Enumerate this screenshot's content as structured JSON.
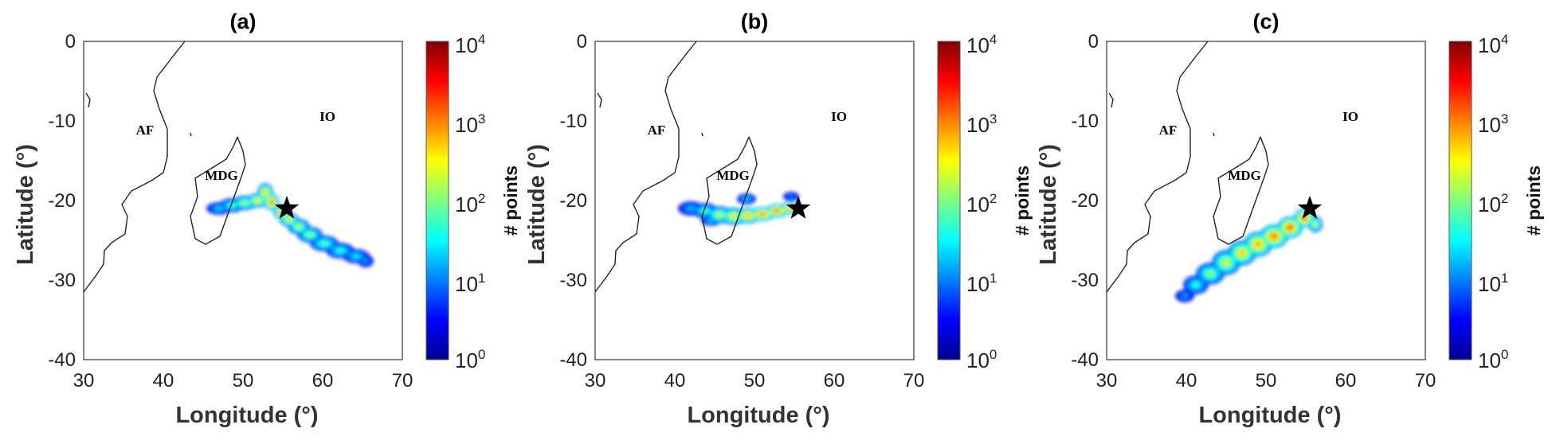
{
  "chart_data": [
    {
      "type": "heatmap",
      "title": "(a)",
      "xlabel": "Longitude (°)",
      "ylabel": "Latitude (°)",
      "xlim": [
        30,
        70
      ],
      "ylim": [
        -40,
        0
      ],
      "xticks": [
        "30",
        "40",
        "50",
        "60",
        "70"
      ],
      "yticks": [
        "0",
        "-10",
        "-20",
        "-30",
        "-40"
      ],
      "colorbar": {
        "label": "# points",
        "scale": "log",
        "range": [
          1,
          10000
        ],
        "ticks": [
          {
            "base": "10",
            "exp": "4"
          },
          {
            "base": "10",
            "exp": "3"
          },
          {
            "base": "10",
            "exp": "2"
          },
          {
            "base": "10",
            "exp": "1"
          },
          {
            "base": "10",
            "exp": "0"
          }
        ]
      },
      "annotations": [
        {
          "text": "AF",
          "lon": 37.7,
          "lat": -11.7
        },
        {
          "text": "MDG",
          "lon": 47.3,
          "lat": -17.4
        },
        {
          "text": "IO",
          "lon": 60.6,
          "lat": -10.0
        }
      ],
      "marker": {
        "symbol": "star",
        "lon": 55.5,
        "lat": -21.0
      },
      "plume": [
        [
          47.0,
          -21.0,
          1.6,
          0.8,
          1.4
        ],
        [
          48.6,
          -20.6,
          1.6,
          0.9,
          1.8
        ],
        [
          50.2,
          -20.3,
          1.6,
          0.9,
          2.2
        ],
        [
          51.8,
          -20.0,
          1.4,
          0.9,
          2.6
        ],
        [
          52.8,
          -19.0,
          1.0,
          1.2,
          2.8
        ],
        [
          53.6,
          -20.2,
          1.0,
          1.1,
          3.2
        ],
        [
          54.8,
          -21.5,
          1.0,
          0.9,
          3.0
        ],
        [
          55.8,
          -22.4,
          1.2,
          0.9,
          2.6
        ],
        [
          57.0,
          -23.3,
          1.4,
          1.0,
          2.3
        ],
        [
          58.4,
          -24.3,
          1.6,
          1.0,
          2.1
        ],
        [
          60.2,
          -25.4,
          1.8,
          1.0,
          1.9
        ],
        [
          62.2,
          -26.3,
          1.8,
          1.0,
          1.7
        ],
        [
          64.2,
          -27.0,
          1.7,
          0.9,
          1.5
        ],
        [
          65.4,
          -27.6,
          1.0,
          0.8,
          1.2
        ]
      ]
    },
    {
      "type": "heatmap",
      "title": "(b)",
      "xlabel": "Longitude (°)",
      "ylabel": "Latitude (°)",
      "xlim": [
        30,
        70
      ],
      "ylim": [
        -40,
        0
      ],
      "xticks": [
        "30",
        "40",
        "50",
        "60",
        "70"
      ],
      "yticks": [
        "0",
        "-10",
        "-20",
        "-30",
        "-40"
      ],
      "colorbar": {
        "label": "# points",
        "scale": "log",
        "range": [
          1,
          10000
        ],
        "ticks": [
          {
            "base": "10",
            "exp": "4"
          },
          {
            "base": "10",
            "exp": "3"
          },
          {
            "base": "10",
            "exp": "2"
          },
          {
            "base": "10",
            "exp": "1"
          },
          {
            "base": "10",
            "exp": "0"
          }
        ]
      },
      "annotations": [
        {
          "text": "AF",
          "lon": 37.7,
          "lat": -11.7
        },
        {
          "text": "MDG",
          "lon": 47.3,
          "lat": -17.4
        },
        {
          "text": "IO",
          "lon": 60.6,
          "lat": -10.0
        }
      ],
      "marker": {
        "symbol": "star",
        "lon": 55.5,
        "lat": -21.0
      },
      "plume": [
        [
          42.0,
          -21.0,
          1.6,
          0.9,
          1.3
        ],
        [
          43.8,
          -21.3,
          1.6,
          1.0,
          1.8
        ],
        [
          45.6,
          -21.8,
          1.6,
          1.1,
          2.3
        ],
        [
          47.4,
          -22.0,
          1.6,
          1.1,
          2.6
        ],
        [
          49.2,
          -21.9,
          1.6,
          1.0,
          2.9
        ],
        [
          51.0,
          -21.7,
          1.6,
          0.9,
          3.1
        ],
        [
          52.8,
          -21.3,
          1.4,
          0.9,
          3.2
        ],
        [
          54.4,
          -21.0,
          1.2,
          0.8,
          3.0
        ],
        [
          49.0,
          -19.8,
          1.2,
          0.7,
          1.4
        ],
        [
          54.6,
          -19.5,
          1.0,
          0.6,
          1.1
        ],
        [
          44.5,
          -22.6,
          1.2,
          0.6,
          1.4
        ]
      ]
    },
    {
      "type": "heatmap",
      "title": "(c)",
      "xlabel": "Longitude (°)",
      "ylabel": "Latitude (°)",
      "xlim": [
        30,
        70
      ],
      "ylim": [
        -40,
        0
      ],
      "xticks": [
        "30",
        "40",
        "50",
        "60",
        "70"
      ],
      "yticks": [
        "0",
        "-10",
        "-20",
        "-30",
        "-40"
      ],
      "colorbar": {
        "label": "# points",
        "scale": "log",
        "range": [
          1,
          10000
        ],
        "ticks": [
          {
            "base": "10",
            "exp": "4"
          },
          {
            "base": "10",
            "exp": "3"
          },
          {
            "base": "10",
            "exp": "2"
          },
          {
            "base": "10",
            "exp": "1"
          },
          {
            "base": "10",
            "exp": "0"
          }
        ]
      },
      "annotations": [
        {
          "text": "AF",
          "lon": 37.7,
          "lat": -11.7
        },
        {
          "text": "MDG",
          "lon": 47.3,
          "lat": -17.4
        },
        {
          "text": "IO",
          "lon": 60.6,
          "lat": -10.0
        }
      ],
      "marker": {
        "symbol": "star",
        "lon": 55.5,
        "lat": -21.0
      },
      "plume": [
        [
          39.8,
          -32.0,
          1.2,
          0.8,
          1.2
        ],
        [
          41.2,
          -30.6,
          1.6,
          1.2,
          1.7
        ],
        [
          43.0,
          -29.2,
          1.8,
          1.4,
          2.1
        ],
        [
          45.0,
          -27.8,
          1.8,
          1.6,
          2.4
        ],
        [
          47.0,
          -26.6,
          1.8,
          1.6,
          2.7
        ],
        [
          49.0,
          -25.5,
          1.8,
          1.6,
          2.9
        ],
        [
          51.0,
          -24.5,
          1.8,
          1.5,
          3.1
        ],
        [
          53.0,
          -23.4,
          1.6,
          1.4,
          3.2
        ],
        [
          54.8,
          -22.2,
          1.3,
          1.2,
          3.2
        ],
        [
          56.2,
          -23.0,
          0.9,
          1.0,
          2.4
        ]
      ]
    }
  ],
  "coastlines": {
    "africa": [
      [
        30.0,
        -31.5
      ],
      [
        31.5,
        -29.5
      ],
      [
        32.5,
        -28.0
      ],
      [
        32.6,
        -26.3
      ],
      [
        33.5,
        -25.3
      ],
      [
        35.2,
        -24.2
      ],
      [
        35.5,
        -22.0
      ],
      [
        34.8,
        -20.5
      ],
      [
        36.0,
        -18.8
      ],
      [
        38.5,
        -17.5
      ],
      [
        40.0,
        -16.5
      ],
      [
        40.5,
        -14.5
      ],
      [
        40.5,
        -11.0
      ],
      [
        39.5,
        -8.5
      ],
      [
        38.8,
        -6.2
      ],
      [
        39.2,
        -4.5
      ],
      [
        40.5,
        -2.8
      ],
      [
        41.5,
        -1.5
      ],
      [
        42.7,
        0.0
      ]
    ],
    "madagascar": [
      [
        49.3,
        -12.0
      ],
      [
        50.0,
        -13.8
      ],
      [
        50.3,
        -15.5
      ],
      [
        49.8,
        -17.0
      ],
      [
        48.9,
        -19.5
      ],
      [
        48.0,
        -22.0
      ],
      [
        47.1,
        -24.5
      ],
      [
        45.3,
        -25.5
      ],
      [
        44.0,
        -24.8
      ],
      [
        43.4,
        -22.0
      ],
      [
        44.3,
        -19.5
      ],
      [
        44.0,
        -17.2
      ],
      [
        46.3,
        -15.8
      ],
      [
        47.9,
        -14.8
      ],
      [
        48.8,
        -13.2
      ],
      [
        49.3,
        -12.0
      ]
    ],
    "comoros": [
      [
        43.4,
        -11.5
      ],
      [
        43.5,
        -11.9
      ]
    ],
    "seychelles": [
      [
        30.3,
        -6.5
      ],
      [
        30.8,
        -7.3
      ],
      [
        30.6,
        -8.3
      ]
    ]
  }
}
